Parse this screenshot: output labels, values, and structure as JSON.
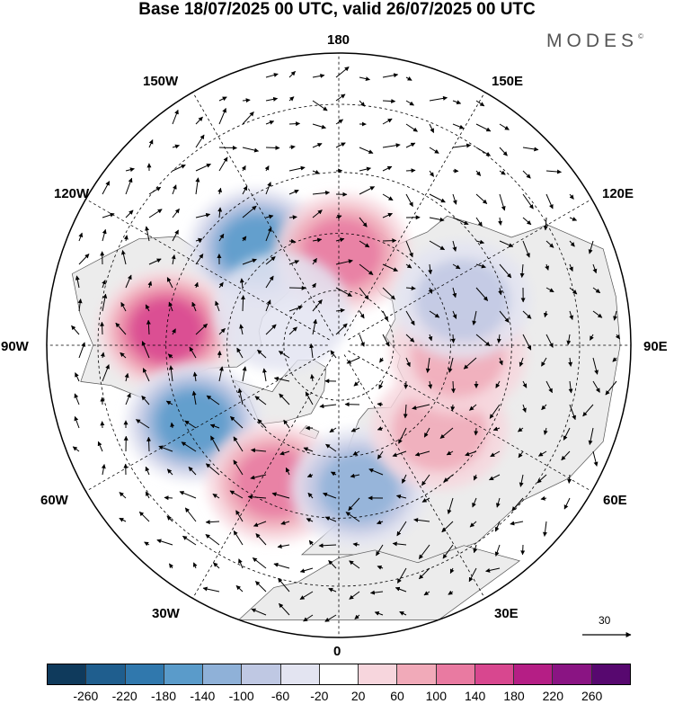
{
  "title": "Base 18/07/2025 00 UTC, valid 26/07/2025 00 UTC",
  "brand": "MODES",
  "brand_mark": "©",
  "longitude_labels": {
    "top": "180",
    "top_left": "150W",
    "top_right": "150E",
    "upper_left": "120W",
    "upper_right": "120E",
    "left": "90W",
    "right": "90E",
    "lower_left": "60W",
    "lower_right": "60E",
    "bottom_left": "30W",
    "bottom_right": "30E",
    "bottom": "0"
  },
  "wind_scale": {
    "value": "30"
  },
  "colorbar": {
    "ticks": [
      "-260",
      "-220",
      "-180",
      "-140",
      "-100",
      "-60",
      "-20",
      "20",
      "60",
      "100",
      "140",
      "180",
      "220",
      "260"
    ],
    "colors": [
      "#0f3a5c",
      "#1f5e8e",
      "#3078ad",
      "#5a9bca",
      "#8fb1d8",
      "#bfc8e3",
      "#e3e4f1",
      "#ffffff",
      "#f7d6dd",
      "#f1aab9",
      "#e97aa1",
      "#d8478f",
      "#b51e85",
      "#8a1483",
      "#57086f"
    ]
  },
  "anomaly_centers": [
    {
      "lon": -140,
      "lat": 56,
      "value": -180
    },
    {
      "lon": -95,
      "lat": 45,
      "value": 150
    },
    {
      "lon": -62,
      "lat": 47,
      "value": -160
    },
    {
      "lon": -25,
      "lat": 50,
      "value": 140
    },
    {
      "lon": 8,
      "lat": 52,
      "value": -120
    },
    {
      "lon": 50,
      "lat": 55,
      "value": 100
    },
    {
      "lon": 85,
      "lat": 58,
      "value": 90
    },
    {
      "lon": 178,
      "lat": 65,
      "value": 120
    },
    {
      "lon": 110,
      "lat": 55,
      "value": -70
    },
    {
      "lon": -120,
      "lat": 72,
      "value": -60
    }
  ]
}
